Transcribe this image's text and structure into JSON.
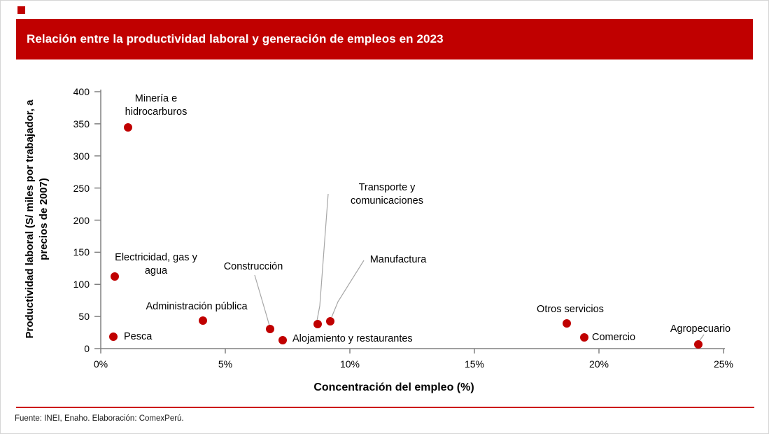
{
  "colors": {
    "accent_red": "#c00000",
    "rule_red": "#cc0000",
    "axis_gray": "#808080",
    "leader_gray": "#a6a6a6",
    "title_text": "#ffffff"
  },
  "header": {
    "title": "Relación entre la productividad laboral y generación de empleos en 2023"
  },
  "footer": {
    "source": "Fuente: INEI, Enaho. Elaboración: ComexPerú."
  },
  "chart_data": {
    "type": "scatter",
    "title": "Relación entre la productividad laboral y generación de empleos en 2023",
    "xlabel": "Concentración del empleo (%)",
    "ylabel": "Productividad laboral (S/ miles por trabajador, a precios de 2007)",
    "xlim": [
      0,
      25
    ],
    "ylim": [
      0,
      400
    ],
    "x_ticks": [
      "0%",
      "5%",
      "10%",
      "15%",
      "20%",
      "25%"
    ],
    "x_tick_values": [
      0,
      5,
      10,
      15,
      20,
      25
    ],
    "y_ticks": [
      0,
      50,
      100,
      150,
      200,
      250,
      300,
      350,
      400
    ],
    "grid": false,
    "legend": false,
    "point_color": "#c00000",
    "points": [
      {
        "label": "Minería e hidrocarburos",
        "x": 1.1,
        "y": 344
      },
      {
        "label": "Electricidad, gas y agua",
        "x": 0.55,
        "y": 112
      },
      {
        "label": "Pesca",
        "x": 0.5,
        "y": 18
      },
      {
        "label": "Administración pública",
        "x": 4.1,
        "y": 44
      },
      {
        "label": "Construcción",
        "x": 6.8,
        "y": 30
      },
      {
        "label": "Alojamiento y restaurantes",
        "x": 7.3,
        "y": 13
      },
      {
        "label": "Transporte y comunicaciones",
        "x": 8.7,
        "y": 38
      },
      {
        "label": "Manufactura",
        "x": 9.2,
        "y": 42
      },
      {
        "label": "Otros servicios",
        "x": 18.7,
        "y": 39
      },
      {
        "label": "Comercio",
        "x": 19.4,
        "y": 17
      },
      {
        "label": "Agropecuario",
        "x": 24.0,
        "y": 7
      }
    ]
  }
}
